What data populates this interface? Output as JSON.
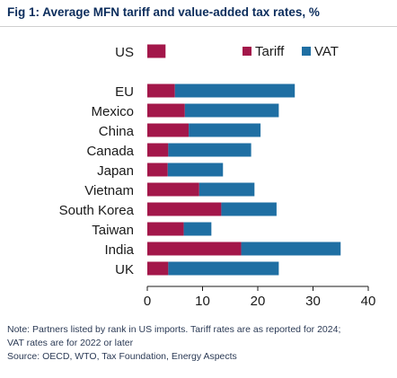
{
  "figure": {
    "title": "Fig 1: Average MFN tariff and value-added tax rates, %",
    "note_line1": "Note: Partners listed by rank in US imports. Tariff rates are as reported for 2024;",
    "note_line2": "VAT rates are for 2022 or later",
    "source": "Source: OECD, WTO, Tax Foundation, Energy Aspects"
  },
  "chart_data": {
    "type": "bar",
    "orientation": "horizontal",
    "stacked": true,
    "title": "Fig 1: Average MFN tariff and value-added tax rates, %",
    "categories": [
      "US",
      "EU",
      "Mexico",
      "China",
      "Canada",
      "Japan",
      "Vietnam",
      "South Korea",
      "Taiwan",
      "India",
      "UK"
    ],
    "series": [
      {
        "name": "Tariff",
        "color": "#a3174a",
        "values": [
          3.3,
          5.0,
          6.8,
          7.5,
          3.8,
          3.7,
          9.4,
          13.4,
          6.6,
          17.0,
          3.8
        ]
      },
      {
        "name": "VAT",
        "color": "#1f6fa3",
        "values": [
          0,
          21.7,
          17.0,
          13.0,
          15.0,
          10.0,
          10.0,
          10.0,
          5.0,
          18.0,
          20.0
        ]
      }
    ],
    "x_ticks": [
      "0",
      "10",
      "20",
      "30",
      "40"
    ],
    "xlim": [
      0,
      40
    ],
    "grid": false,
    "legend_position": "top-right"
  }
}
